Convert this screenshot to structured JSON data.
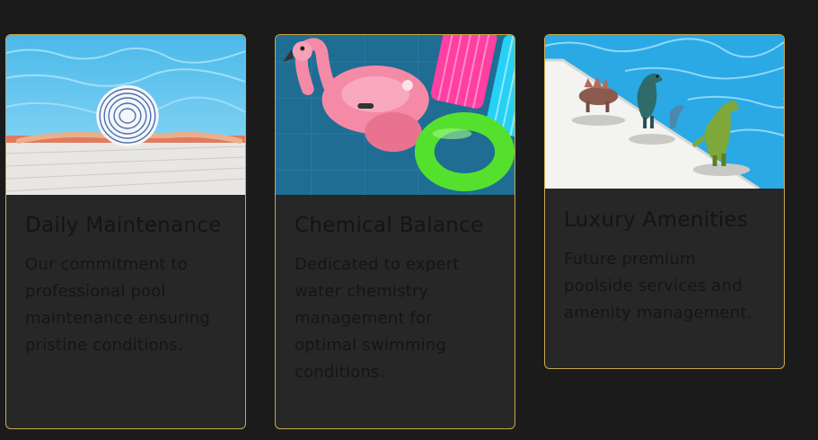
{
  "cards": [
    {
      "title": "Daily Maintenance",
      "description": "Our commitment to professional pool maintenance ensuring pristine conditions.",
      "image": "pool-with-sunhat"
    },
    {
      "title": "Chemical Balance",
      "description": "Dedicated to expert water chemistry management for optimal swimming conditions.",
      "image": "pool-floats"
    },
    {
      "title": "Luxury Amenities",
      "description": "Future premium poolside services and amenity management.",
      "image": "poolside-toy-dinosaurs"
    }
  ],
  "colors": {
    "page_background": "#1b1b1b",
    "card_background": "#272727",
    "card_border": "#c9a94a",
    "text": "#141414"
  }
}
